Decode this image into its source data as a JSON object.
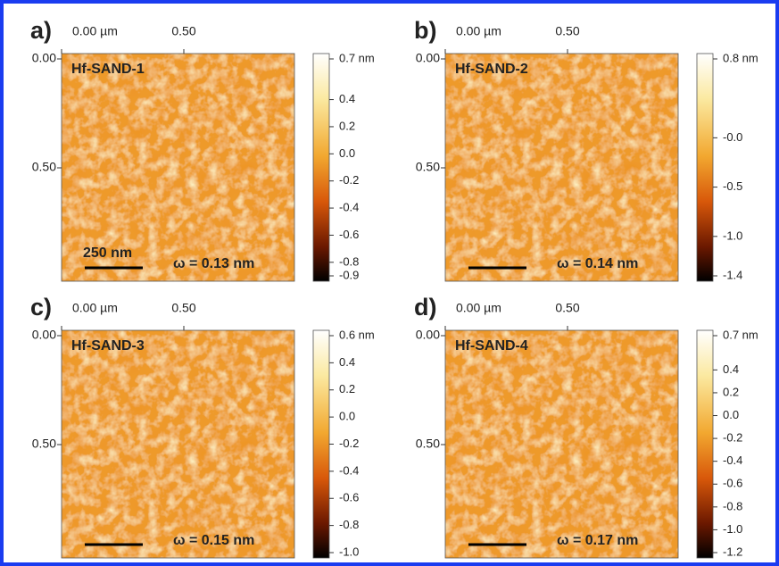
{
  "panels": [
    {
      "label": "a)",
      "x_ticks": [
        "0.00 µm",
        "0.50"
      ],
      "y_ticks": [
        "0.00",
        "0.50"
      ],
      "sample": "Hf-SAND-1",
      "omega": "ω = 0.13 nm",
      "scale_bar": "250 nm",
      "colorbar": [
        "0.7 nm",
        "0.4",
        "0.2",
        "0.0",
        "-0.2",
        "-0.4",
        "-0.6",
        "-0.8",
        "-0.9"
      ]
    },
    {
      "label": "b)",
      "x_ticks": [
        "0.00 µm",
        "0.50"
      ],
      "y_ticks": [
        "0.00",
        "0.50"
      ],
      "sample": "Hf-SAND-2",
      "omega": "ω = 0.14 nm",
      "colorbar": [
        "0.8 nm",
        "-0.0",
        "-0.5",
        "-1.0",
        "-1.4"
      ]
    },
    {
      "label": "c)",
      "x_ticks": [
        "0.00 µm",
        "0.50"
      ],
      "y_ticks": [
        "0.00",
        "0.50"
      ],
      "sample": "Hf-SAND-3",
      "omega": "ω = 0.15 nm",
      "colorbar": [
        "0.6 nm",
        "0.4",
        "0.2",
        "0.0",
        "-0.2",
        "-0.4",
        "-0.6",
        "-0.8",
        "-1.0"
      ]
    },
    {
      "label": "d)",
      "x_ticks": [
        "0.00 µm",
        "0.50"
      ],
      "y_ticks": [
        "0.00",
        "0.50"
      ],
      "sample": "Hf-SAND-4",
      "omega": "ω = 0.17 nm",
      "colorbar": [
        "0.7 nm",
        "0.4",
        "0.2",
        "0.0",
        "-0.2",
        "-0.4",
        "-0.6",
        "-0.8",
        "-1.0",
        "-1.2"
      ]
    }
  ]
}
